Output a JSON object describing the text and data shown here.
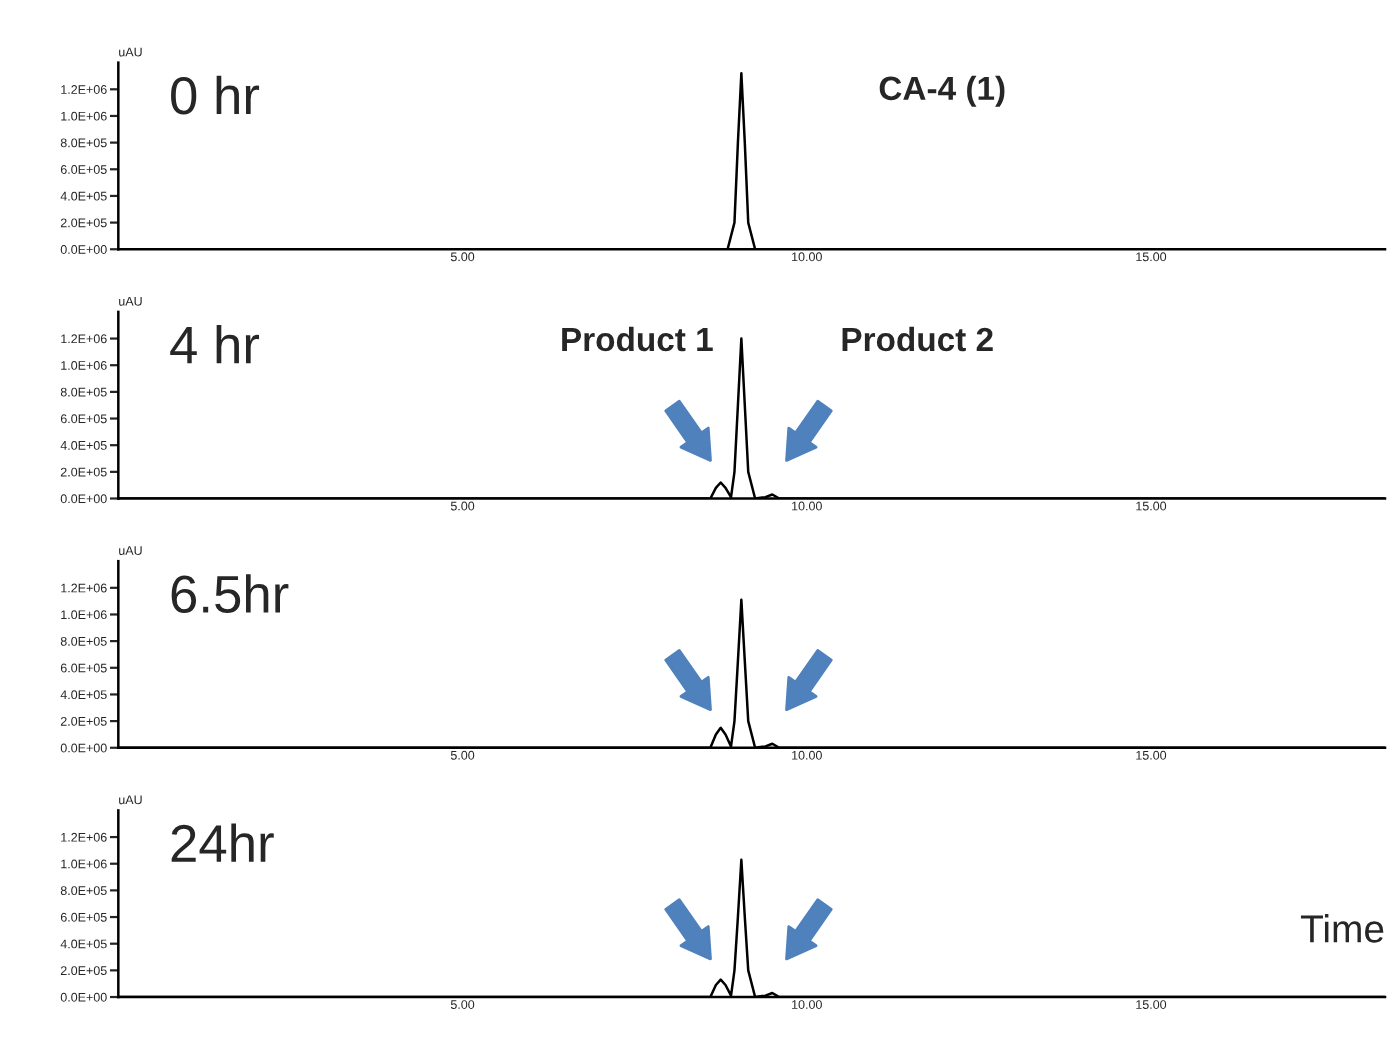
{
  "chart_data": [
    {
      "type": "line",
      "title": "0 hr",
      "ylabel": "uAU",
      "annotations": [
        "CA-4 (1)"
      ],
      "xlim": [
        0,
        18.4
      ],
      "ylim": [
        0,
        1400000
      ],
      "xticks": [
        {
          "value": 5,
          "label": "5.00"
        },
        {
          "value": 10,
          "label": "10.00"
        },
        {
          "value": 15,
          "label": "15.00"
        }
      ],
      "yticks": [
        {
          "value": 0,
          "label": "0.0E+00"
        },
        {
          "value": 200000,
          "label": "2.0E+05"
        },
        {
          "value": 400000,
          "label": "4.0E+05"
        },
        {
          "value": 600000,
          "label": "6.0E+05"
        },
        {
          "value": 800000,
          "label": "8.0E+05"
        },
        {
          "value": 1000000,
          "label": "1.0E+06"
        },
        {
          "value": 1200000,
          "label": "1.2E+06"
        }
      ],
      "grid": false,
      "legend": false,
      "series": [
        {
          "color": "#000000",
          "x": [
            0,
            8.85,
            8.95,
            9.0,
            9.05,
            9.1,
            9.15,
            9.25,
            18.4
          ],
          "values": [
            0,
            0,
            200000,
            800000,
            1320000,
            800000,
            200000,
            0,
            0
          ]
        }
      ]
    },
    {
      "type": "line",
      "title": "4 hr",
      "ylabel": "uAU",
      "annotations": [
        "Product 1",
        "Product 2"
      ],
      "xlim": [
        0,
        18.4
      ],
      "ylim": [
        0,
        1400000
      ],
      "xticks": [
        {
          "value": 5,
          "label": "5.00"
        },
        {
          "value": 10,
          "label": "10.00"
        },
        {
          "value": 15,
          "label": "15.00"
        }
      ],
      "yticks": [
        {
          "value": 0,
          "label": "0.0E+00"
        },
        {
          "value": 200000,
          "label": "2.0E+05"
        },
        {
          "value": 400000,
          "label": "4.0E+05"
        },
        {
          "value": 600000,
          "label": "6.0E+05"
        },
        {
          "value": 800000,
          "label": "8.0E+05"
        },
        {
          "value": 1000000,
          "label": "1.0E+06"
        },
        {
          "value": 1200000,
          "label": "1.2E+06"
        }
      ],
      "grid": false,
      "legend": false,
      "series": [
        {
          "color": "#000000",
          "x": [
            0,
            8.6,
            8.68,
            8.75,
            8.82,
            8.9,
            8.95,
            9.0,
            9.05,
            9.1,
            9.15,
            9.25,
            9.4,
            9.5,
            9.6,
            18.4
          ],
          "values": [
            0,
            0,
            80000,
            120000,
            80000,
            10000,
            200000,
            700000,
            1200000,
            700000,
            200000,
            0,
            10000,
            30000,
            0,
            0
          ]
        }
      ]
    },
    {
      "type": "line",
      "title": "6.5hr",
      "ylabel": "uAU",
      "xlim": [
        0,
        18.4
      ],
      "ylim": [
        0,
        1400000
      ],
      "xticks": [
        {
          "value": 5,
          "label": "5.00"
        },
        {
          "value": 10,
          "label": "10.00"
        },
        {
          "value": 15,
          "label": "15.00"
        }
      ],
      "yticks": [
        {
          "value": 0,
          "label": "0.0E+00"
        },
        {
          "value": 200000,
          "label": "2.0E+05"
        },
        {
          "value": 400000,
          "label": "4.0E+05"
        },
        {
          "value": 600000,
          "label": "6.0E+05"
        },
        {
          "value": 800000,
          "label": "8.0E+05"
        },
        {
          "value": 1000000,
          "label": "1.0E+06"
        },
        {
          "value": 1200000,
          "label": "1.2E+06"
        }
      ],
      "grid": false,
      "legend": false,
      "series": [
        {
          "color": "#000000",
          "x": [
            0,
            8.6,
            8.68,
            8.75,
            8.82,
            8.9,
            8.95,
            9.0,
            9.05,
            9.1,
            9.15,
            9.25,
            9.4,
            9.5,
            9.6,
            18.4
          ],
          "values": [
            0,
            0,
            100000,
            150000,
            100000,
            10000,
            200000,
            650000,
            1110000,
            650000,
            200000,
            0,
            10000,
            30000,
            0,
            0
          ]
        }
      ]
    },
    {
      "type": "line",
      "title": "24hr",
      "ylabel": "uAU",
      "xlabel": "Time",
      "xlim": [
        0,
        18.4
      ],
      "ylim": [
        0,
        1400000
      ],
      "xticks": [
        {
          "value": 5,
          "label": "5.00"
        },
        {
          "value": 10,
          "label": "10.00"
        },
        {
          "value": 15,
          "label": "15.00"
        }
      ],
      "yticks": [
        {
          "value": 0,
          "label": "0.0E+00"
        },
        {
          "value": 200000,
          "label": "2.0E+05"
        },
        {
          "value": 400000,
          "label": "4.0E+05"
        },
        {
          "value": 600000,
          "label": "6.0E+05"
        },
        {
          "value": 800000,
          "label": "8.0E+05"
        },
        {
          "value": 1000000,
          "label": "1.0E+06"
        },
        {
          "value": 1200000,
          "label": "1.2E+06"
        }
      ],
      "grid": false,
      "legend": false,
      "series": [
        {
          "color": "#000000",
          "x": [
            0,
            8.6,
            8.68,
            8.75,
            8.82,
            8.9,
            8.95,
            9.0,
            9.05,
            9.1,
            9.15,
            9.25,
            9.4,
            9.5,
            9.6,
            18.4
          ],
          "values": [
            0,
            0,
            90000,
            130000,
            90000,
            10000,
            200000,
            600000,
            1030000,
            600000,
            200000,
            0,
            10000,
            30000,
            0,
            0
          ]
        }
      ]
    }
  ]
}
